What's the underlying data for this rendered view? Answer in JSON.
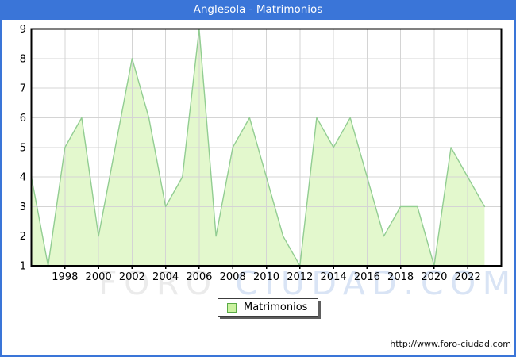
{
  "window": {
    "title": "Anglesola - Matrimonios"
  },
  "chart_data": {
    "type": "area",
    "title": "Anglesola - Matrimonios",
    "series_name": "Matrimonios",
    "x": [
      1996,
      1997,
      1998,
      1999,
      2000,
      2001,
      2002,
      2003,
      2004,
      2005,
      2006,
      2007,
      2008,
      2009,
      2010,
      2011,
      2012,
      2013,
      2014,
      2015,
      2016,
      2017,
      2018,
      2019,
      2020,
      2021,
      2022,
      2023
    ],
    "values": [
      4,
      1,
      5,
      6,
      2,
      5,
      8,
      6,
      3,
      4,
      9,
      2,
      5,
      6,
      4,
      2,
      1,
      6,
      5,
      6,
      4,
      2,
      3,
      3,
      1,
      5,
      4,
      3
    ],
    "xlim": [
      1996,
      2024
    ],
    "ylim": [
      1,
      9
    ],
    "xticks": [
      1998,
      2000,
      2002,
      2004,
      2006,
      2008,
      2010,
      2012,
      2014,
      2016,
      2018,
      2020,
      2022
    ],
    "yticks": [
      1,
      2,
      3,
      4,
      5,
      6,
      7,
      8,
      9
    ],
    "grid": true,
    "legend_position": "bottom-center",
    "xlabel": "",
    "ylabel": "",
    "line_color": "#92cd92",
    "fill_color": "#e3f8cd",
    "grid_color": "#d4d4d4",
    "frame_color": "#000000",
    "tick_label_color": "#000000"
  },
  "legend": {
    "label": "Matrimonios",
    "swatch_fill": "#cbf2a0",
    "swatch_border": "#5aaa46"
  },
  "watermark": {
    "part1": "FORO",
    "part2": " CIUDAD.COM"
  },
  "footer": {
    "url": "http://www.foro-ciudad.com"
  },
  "colors": {
    "title_bar_bg": "#3a75d8",
    "outer_border": "#3a75d8",
    "title_text": "#ffffff"
  }
}
